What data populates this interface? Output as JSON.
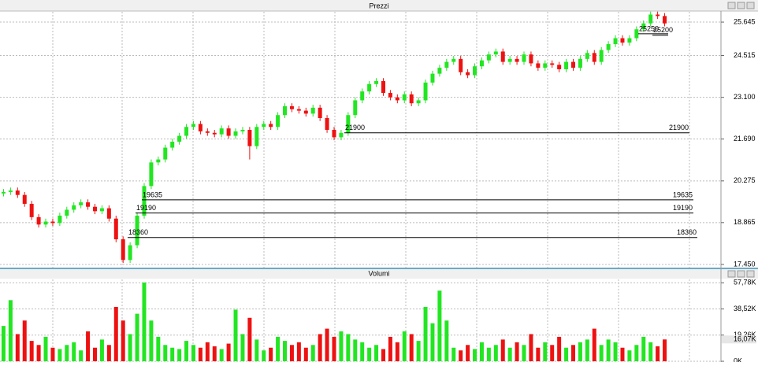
{
  "chart_data": [
    {
      "type": "candlestick",
      "title": "Prezzi",
      "up_color": "#22e622",
      "down_color": "#ee1111",
      "open": [
        19850,
        19900,
        19950,
        19800,
        19500,
        19050,
        18800,
        18900,
        18850,
        19100,
        19300,
        19450,
        19550,
        19400,
        19250,
        19350,
        19000,
        18300,
        17600,
        18100,
        19100,
        20100,
        20900,
        21000,
        21400,
        21600,
        21800,
        22100,
        22200,
        21950,
        21900,
        21850,
        22050,
        21800,
        21950,
        22000,
        21450,
        22100,
        22200,
        22100,
        22500,
        22800,
        22700,
        22650,
        22550,
        22750,
        22400,
        22000,
        21750,
        21900,
        22500,
        23000,
        23300,
        23550,
        23650,
        23250,
        23100,
        23000,
        23200,
        22900,
        23000,
        23600,
        23900,
        24100,
        24300,
        24400,
        23950,
        23850,
        24150,
        24350,
        24550,
        24650,
        24300,
        24400,
        24300,
        24550,
        24250,
        24100,
        24250,
        24200,
        24050,
        24300,
        24100,
        24400,
        24600,
        24300,
        24700,
        24900,
        25100,
        24950,
        25100,
        25400,
        25600,
        25900,
        25850
      ],
      "high": [
        20000,
        20050,
        20050,
        19900,
        19600,
        19150,
        19000,
        19000,
        19200,
        19400,
        19550,
        19650,
        19650,
        19500,
        19450,
        19450,
        19100,
        18400,
        18200,
        19200,
        20200,
        21000,
        21100,
        21500,
        21700,
        21900,
        22200,
        22300,
        22300,
        22050,
        22000,
        22150,
        22150,
        22050,
        22100,
        22100,
        22200,
        22300,
        22300,
        22600,
        22900,
        22900,
        22800,
        22750,
        22850,
        22850,
        22500,
        22100,
        22000,
        22600,
        23100,
        23400,
        23650,
        23750,
        23750,
        23350,
        23200,
        23300,
        23300,
        23100,
        23700,
        24000,
        24200,
        24400,
        24500,
        24500,
        24050,
        24250,
        24450,
        24650,
        24750,
        24750,
        24500,
        24500,
        24650,
        24650,
        24350,
        24350,
        24350,
        24300,
        24400,
        24400,
        24500,
        24700,
        24700,
        24800,
        25000,
        25200,
        25200,
        25200,
        25500,
        25700,
        26000,
        26000,
        25950
      ],
      "low": [
        19750,
        19800,
        19700,
        19400,
        18950,
        18700,
        18700,
        18750,
        18750,
        19000,
        19200,
        19350,
        19300,
        19150,
        19150,
        18900,
        18200,
        17500,
        17500,
        18000,
        19000,
        20000,
        20800,
        20900,
        21300,
        21500,
        21700,
        22000,
        21850,
        21800,
        21750,
        21750,
        21700,
        21700,
        21850,
        21000,
        21350,
        22000,
        22000,
        22000,
        22400,
        22600,
        22550,
        22450,
        22450,
        22300,
        21900,
        21650,
        21650,
        21800,
        22400,
        22900,
        23200,
        23450,
        23150,
        23000,
        22900,
        22900,
        22800,
        22800,
        22900,
        23500,
        23800,
        24000,
        24200,
        23850,
        23750,
        23750,
        24050,
        24250,
        24450,
        24200,
        24200,
        24200,
        24200,
        24150,
        24000,
        24000,
        24100,
        23950,
        23950,
        24000,
        24000,
        24300,
        24200,
        24200,
        24600,
        24800,
        24850,
        24850,
        25000,
        25300,
        25500,
        25750,
        25500
      ],
      "close": [
        19900,
        19950,
        19800,
        19500,
        19050,
        18800,
        18900,
        18850,
        19100,
        19300,
        19450,
        19550,
        19400,
        19250,
        19350,
        19000,
        18300,
        17600,
        18100,
        19100,
        20100,
        20900,
        21000,
        21400,
        21600,
        21800,
        22100,
        22200,
        21950,
        21900,
        21850,
        22050,
        21800,
        21950,
        22000,
        21450,
        22100,
        22200,
        22100,
        22500,
        22800,
        22700,
        22650,
        22550,
        22750,
        22400,
        22000,
        21750,
        21900,
        22500,
        23000,
        23300,
        23550,
        23650,
        23250,
        23100,
        23000,
        23200,
        22900,
        23000,
        23600,
        23900,
        24100,
        24300,
        24400,
        23950,
        23850,
        24150,
        24350,
        24550,
        24650,
        24300,
        24400,
        24300,
        24550,
        24250,
        24100,
        24250,
        24200,
        24050,
        24300,
        24100,
        24400,
        24600,
        24300,
        24700,
        24900,
        25100,
        24950,
        25100,
        25400,
        25600,
        25900,
        25850,
        25600
      ],
      "ylim": [
        17343,
        26312
      ],
      "yticks": [
        {
          "value": 17450,
          "label": "17.450"
        },
        {
          "value": 18865,
          "label": "18.865"
        },
        {
          "value": 20275,
          "label": "20.275"
        },
        {
          "value": 21690,
          "label": "21.690"
        },
        {
          "value": 23100,
          "label": "23.100"
        },
        {
          "value": 24515,
          "label": "24.515"
        },
        {
          "value": 25645,
          "label": "25.645"
        }
      ],
      "levels": [
        21900,
        19635,
        19190,
        18360,
        25250,
        25200
      ]
    },
    {
      "type": "volume",
      "title": "Volumi",
      "values": [
        26000,
        45000,
        20000,
        30000,
        15000,
        12000,
        18000,
        10000,
        9000,
        12000,
        14000,
        8000,
        22000,
        10000,
        16000,
        12000,
        40000,
        30000,
        20000,
        35000,
        58000,
        30000,
        18000,
        12000,
        10000,
        9000,
        15000,
        12000,
        10000,
        14000,
        11000,
        9000,
        13000,
        38000,
        20000,
        32000,
        16000,
        8000,
        10000,
        18000,
        15000,
        12000,
        14000,
        10000,
        12000,
        20000,
        24000,
        18000,
        22000,
        20000,
        16000,
        14000,
        10000,
        12000,
        9000,
        18000,
        14000,
        22000,
        20000,
        15000,
        40000,
        28000,
        52000,
        30000,
        10000,
        8000,
        12000,
        9000,
        14000,
        10000,
        12000,
        16000,
        10000,
        14000,
        12000,
        20000,
        10000,
        14000,
        12000,
        18000,
        10000,
        12000,
        14000,
        16000,
        24000,
        12000,
        16000,
        14000,
        10000,
        8000,
        12000,
        18000,
        14000,
        11000,
        16070
      ],
      "ylim": [
        0,
        62000
      ],
      "yticks": [
        {
          "value": 0,
          "label": "0K"
        },
        {
          "value": 19260,
          "label": "19,26K"
        },
        {
          "value": 38520,
          "label": "38,52K"
        },
        {
          "value": 57780,
          "label": "57,78K"
        }
      ],
      "current_value": {
        "value": 16070,
        "label": "16,07K"
      }
    }
  ]
}
